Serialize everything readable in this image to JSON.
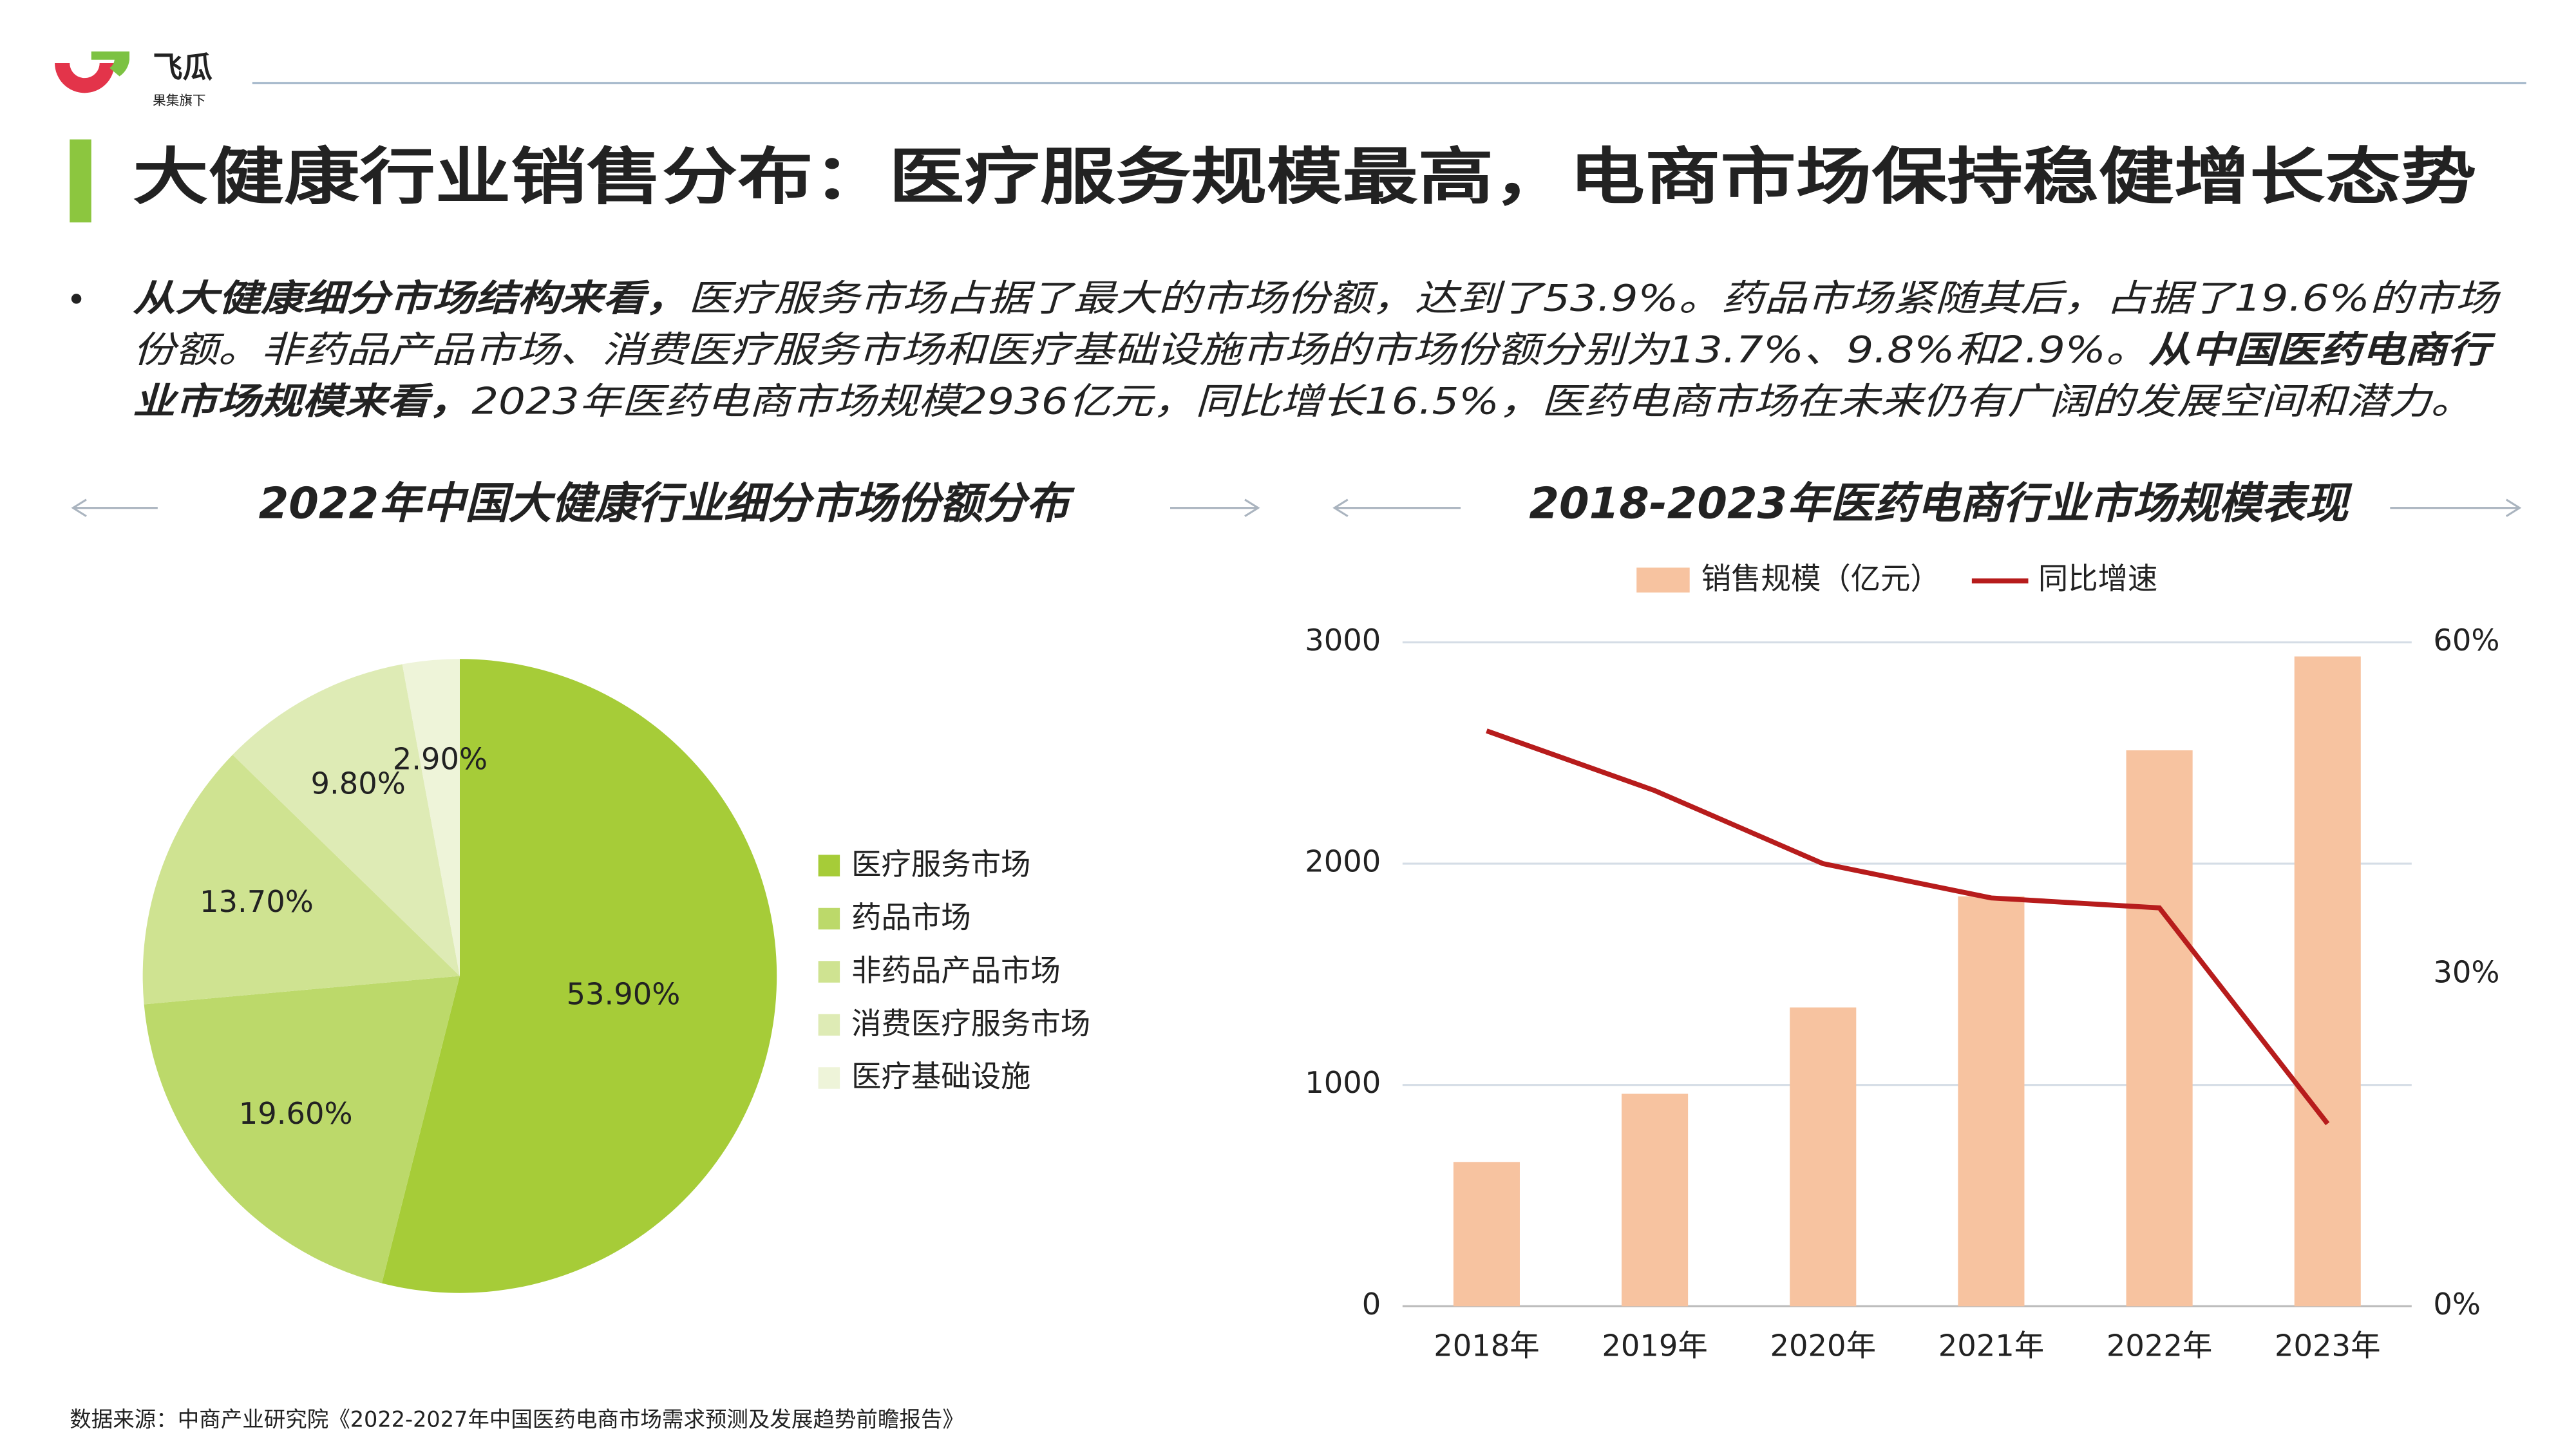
{
  "header": {
    "logo": "飞瓜",
    "logo_sub": "果集旗下"
  },
  "title": "大健康行业销售分布：医疗服务规模最高，电商市场保持稳健增长态势",
  "intro": {
    "lines": [
      [
        "从大健康细分市场结构来看，",
        "医疗服务市场占据了最大的市场份额，达到了53.9%。药品市场紧随其后，占据了19.6%的市场"
      ],
      [
        "份额。非药品产品市场、消费医疗服务市场和医疗基础设施市场的市场份额分别为13.7%、9.8%和2.9%。",
        "从中国医药电商行"
      ],
      [
        "业市场规模来看，",
        "2023年医药电商市场规模2936亿元，同比增长16.5%，医药电商市场在未来仍有广阔的发展空间和潜力。"
      ]
    ]
  },
  "source": "数据来源：中商产业研究院《2022-2027年中国医药电商市场需求预测及发展趋势前瞻报告》",
  "chart_data": [
    {
      "type": "pie",
      "title": "2022年中国大健康行业细分市场份额分布",
      "categories": [
        "医疗服务市场",
        "药品市场",
        "非药品产品市场",
        "消费医疗服务市场",
        "医疗基础设施"
      ],
      "values": [
        53.9,
        19.6,
        13.7,
        9.8,
        2.9
      ],
      "value_labels": [
        "53.90%",
        "19.60%",
        "13.70%",
        "9.80%",
        "2.90%"
      ],
      "colors": [
        "#a6cc38",
        "#bcd96a",
        "#cfe391",
        "#deebb5",
        "#eef4d9"
      ],
      "legend": "right"
    },
    {
      "type": "bar-line",
      "title": "2018-2023年医药电商行业市场规模表现",
      "categories": [
        "2018年",
        "2019年",
        "2020年",
        "2021年",
        "2022年",
        "2023年"
      ],
      "series": [
        {
          "name": "销售规模（亿元）",
          "color": "#f7c3a0",
          "type": "bar",
          "values": [
            652,
            960,
            1350,
            1852,
            2512,
            2936
          ]
        },
        {
          "name": "同比增速",
          "color": "#b71c1c",
          "type": "line",
          "axis": "y2",
          "values": [
            52.0,
            46.6,
            40.0,
            36.9,
            36.0,
            16.5
          ]
        }
      ],
      "ylim": [
        0,
        3000
      ],
      "yticks": [
        0,
        1000,
        2000,
        3000
      ],
      "y2lim": [
        0,
        60
      ],
      "y2ticks": [
        {
          "value": 0,
          "label": "0%"
        },
        {
          "value": 30,
          "label": "30%"
        },
        {
          "value": 60,
          "label": "60%"
        }
      ],
      "grid": true,
      "legend": "top"
    }
  ]
}
